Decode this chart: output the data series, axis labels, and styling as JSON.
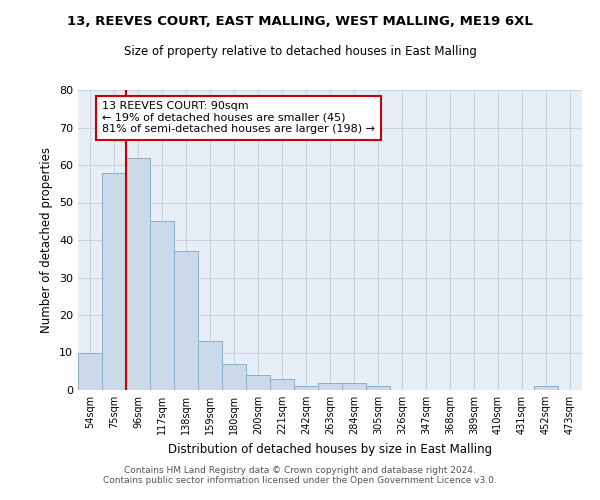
{
  "title1": "13, REEVES COURT, EAST MALLING, WEST MALLING, ME19 6XL",
  "title2": "Size of property relative to detached houses in East Malling",
  "xlabel": "Distribution of detached houses by size in East Malling",
  "ylabel": "Number of detached properties",
  "bar_color": "#ccd9e8",
  "bar_edge_color": "#8aafc8",
  "grid_color": "#c8d4e4",
  "background_color": "#e8eef6",
  "categories": [
    "54sqm",
    "75sqm",
    "96sqm",
    "117sqm",
    "138sqm",
    "159sqm",
    "180sqm",
    "200sqm",
    "221sqm",
    "242sqm",
    "263sqm",
    "284sqm",
    "305sqm",
    "326sqm",
    "347sqm",
    "368sqm",
    "389sqm",
    "410sqm",
    "431sqm",
    "452sqm",
    "473sqm"
  ],
  "values": [
    10,
    58,
    62,
    45,
    37,
    13,
    7,
    4,
    3,
    1,
    2,
    2,
    1,
    0,
    0,
    0,
    0,
    0,
    0,
    1,
    0
  ],
  "vline_x": 2.0,
  "vline_color": "#cc0000",
  "annotation_line1": "13 REEVES COURT: 90sqm",
  "annotation_line2": "← 19% of detached houses are smaller (45)",
  "annotation_line3": "81% of semi-detached houses are larger (198) →",
  "annotation_box_facecolor": "#ffffff",
  "annotation_box_edgecolor": "#cc0000",
  "ylim": [
    0,
    80
  ],
  "yticks": [
    0,
    10,
    20,
    30,
    40,
    50,
    60,
    70,
    80
  ],
  "footer1": "Contains HM Land Registry data © Crown copyright and database right 2024.",
  "footer2": "Contains public sector information licensed under the Open Government Licence v3.0."
}
